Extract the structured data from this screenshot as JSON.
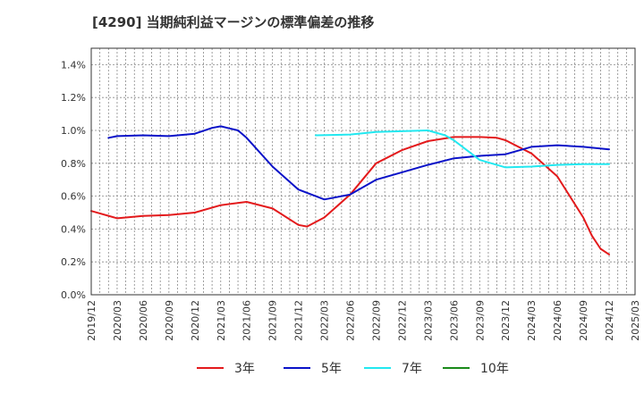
{
  "chart_data": {
    "type": "line",
    "title": "[4290]  当期純利益マージンの標準偏差の推移",
    "xlabel": "",
    "ylabel": "",
    "x_ticks": [
      "2019/12",
      "2020/03",
      "2020/06",
      "2020/09",
      "2020/12",
      "2021/03",
      "2021/06",
      "2021/09",
      "2021/12",
      "2022/03",
      "2022/06",
      "2022/09",
      "2022/12",
      "2023/03",
      "2023/06",
      "2023/09",
      "2023/12",
      "2024/03",
      "2024/06",
      "2024/09",
      "2024/12",
      "2025/03"
    ],
    "y_ticks": [
      "0.0%",
      "0.2%",
      "0.4%",
      "0.6%",
      "0.8%",
      "1.0%",
      "1.2%",
      "1.4%"
    ],
    "ylim": [
      0,
      1.5
    ],
    "grid": true,
    "legend_position": "bottom",
    "series": [
      {
        "name": "3年",
        "color": "#e31a1c",
        "points": [
          [
            "2019/12",
            0.51
          ],
          [
            "2020/03",
            0.465
          ],
          [
            "2020/06",
            0.48
          ],
          [
            "2020/09",
            0.485
          ],
          [
            "2020/12",
            0.5
          ],
          [
            "2021/03",
            0.545
          ],
          [
            "2021/06",
            0.565
          ],
          [
            "2021/09",
            0.525
          ],
          [
            "2021/12",
            0.425
          ],
          [
            "2022/01",
            0.415
          ],
          [
            "2022/03",
            0.47
          ],
          [
            "2022/06",
            0.61
          ],
          [
            "2022/09",
            0.8
          ],
          [
            "2022/12",
            0.88
          ],
          [
            "2023/03",
            0.935
          ],
          [
            "2023/06",
            0.96
          ],
          [
            "2023/09",
            0.96
          ],
          [
            "2023/11",
            0.955
          ],
          [
            "2023/12",
            0.94
          ],
          [
            "2024/03",
            0.86
          ],
          [
            "2024/06",
            0.72
          ],
          [
            "2024/09",
            0.47
          ],
          [
            "2024/10",
            0.36
          ],
          [
            "2024/11",
            0.28
          ],
          [
            "2024/12",
            0.245
          ]
        ]
      },
      {
        "name": "5年",
        "color": "#0a12c8",
        "points": [
          [
            "2020/02",
            0.955
          ],
          [
            "2020/03",
            0.965
          ],
          [
            "2020/06",
            0.97
          ],
          [
            "2020/09",
            0.965
          ],
          [
            "2020/12",
            0.98
          ],
          [
            "2021/02",
            1.015
          ],
          [
            "2021/03",
            1.025
          ],
          [
            "2021/05",
            1.0
          ],
          [
            "2021/06",
            0.955
          ],
          [
            "2021/09",
            0.78
          ],
          [
            "2021/12",
            0.64
          ],
          [
            "2022/03",
            0.58
          ],
          [
            "2022/06",
            0.61
          ],
          [
            "2022/09",
            0.7
          ],
          [
            "2022/12",
            0.745
          ],
          [
            "2023/03",
            0.79
          ],
          [
            "2023/06",
            0.83
          ],
          [
            "2023/09",
            0.845
          ],
          [
            "2023/12",
            0.855
          ],
          [
            "2024/03",
            0.9
          ],
          [
            "2024/06",
            0.91
          ],
          [
            "2024/09",
            0.9
          ],
          [
            "2024/12",
            0.885
          ]
        ]
      },
      {
        "name": "7年",
        "color": "#22e8f0",
        "points": [
          [
            "2022/02",
            0.97
          ],
          [
            "2022/06",
            0.975
          ],
          [
            "2022/09",
            0.99
          ],
          [
            "2022/12",
            0.995
          ],
          [
            "2023/03",
            1.0
          ],
          [
            "2023/05",
            0.97
          ],
          [
            "2023/06",
            0.94
          ],
          [
            "2023/09",
            0.82
          ],
          [
            "2023/12",
            0.775
          ],
          [
            "2024/03",
            0.78
          ],
          [
            "2024/06",
            0.79
          ],
          [
            "2024/09",
            0.795
          ],
          [
            "2024/12",
            0.795
          ]
        ]
      },
      {
        "name": "10年",
        "color": "#1a8a1a",
        "points": []
      }
    ]
  }
}
